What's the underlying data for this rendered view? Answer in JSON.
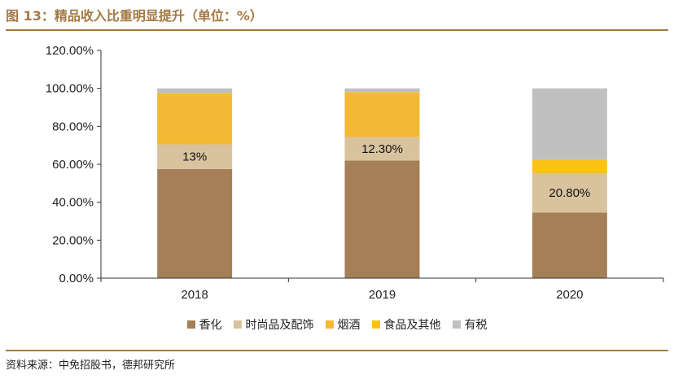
{
  "figure_title": "图 13：精品收入比重明显提升（单位：%）",
  "source": "资料来源：中免招股书，德邦研究所",
  "chart_data": {
    "type": "bar",
    "stacked": true,
    "categories": [
      "2018",
      "2019",
      "2020"
    ],
    "ylim": [
      0,
      120
    ],
    "yticks": [
      0,
      20,
      40,
      60,
      80,
      100,
      120
    ],
    "ytick_labels": [
      "0.00%",
      "20.00%",
      "40.00%",
      "60.00%",
      "80.00%",
      "100.00%",
      "120.00%"
    ],
    "legend_position": "bottom",
    "grid": false,
    "series": [
      {
        "name": "香化",
        "color": "#a47f58",
        "values": [
          57.5,
          62,
          34.5
        ]
      },
      {
        "name": "时尚品及配饰",
        "color": "#d8c39e",
        "values": [
          13,
          12.3,
          20.8
        ],
        "data_labels": [
          "13%",
          "12.30%",
          "20.80%"
        ]
      },
      {
        "name": "烟酒",
        "color": "#f4b934",
        "values": [
          26.5,
          23.2,
          1.2
        ]
      },
      {
        "name": "食品及其他",
        "color": "#fdc314",
        "values": [
          0.5,
          0.5,
          5.8
        ]
      },
      {
        "name": "有税",
        "color": "#c0c0c0",
        "values": [
          2.5,
          2,
          37.7
        ]
      }
    ]
  }
}
